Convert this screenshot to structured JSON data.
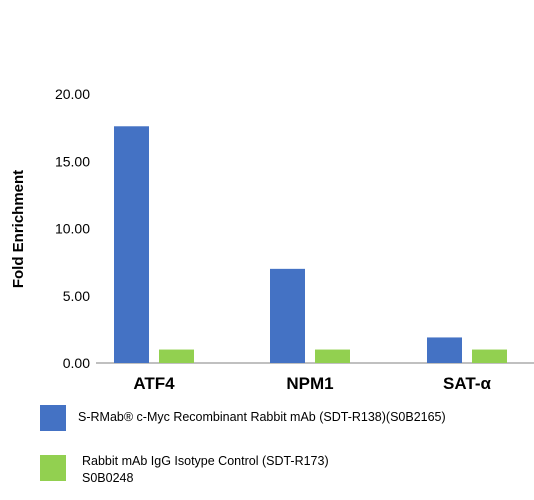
{
  "chart_data": {
    "type": "bar",
    "title": "",
    "xlabel": "",
    "ylabel": "Fold Enrichment",
    "ylim": [
      0,
      20
    ],
    "yticks": [
      "0.00",
      "5.00",
      "10.00",
      "15.00",
      "20.00"
    ],
    "ytick_values": [
      0,
      5,
      10,
      15,
      20
    ],
    "grid": false,
    "legend_position": "bottom",
    "categories": [
      "ATF4",
      "NPM1",
      "SAT-α"
    ],
    "series": [
      {
        "name": "S-RMab® c-Myc Recombinant Rabbit mAb (SDT-R138)(S0B2165)",
        "color": "#4472C4",
        "values": [
          17.6,
          7.0,
          1.9
        ]
      },
      {
        "name": "Rabbit mAb IgG Isotype Control (SDT-R173)\nS0B0248",
        "color": "#92D050",
        "values": [
          1.0,
          1.0,
          1.0
        ]
      }
    ]
  }
}
